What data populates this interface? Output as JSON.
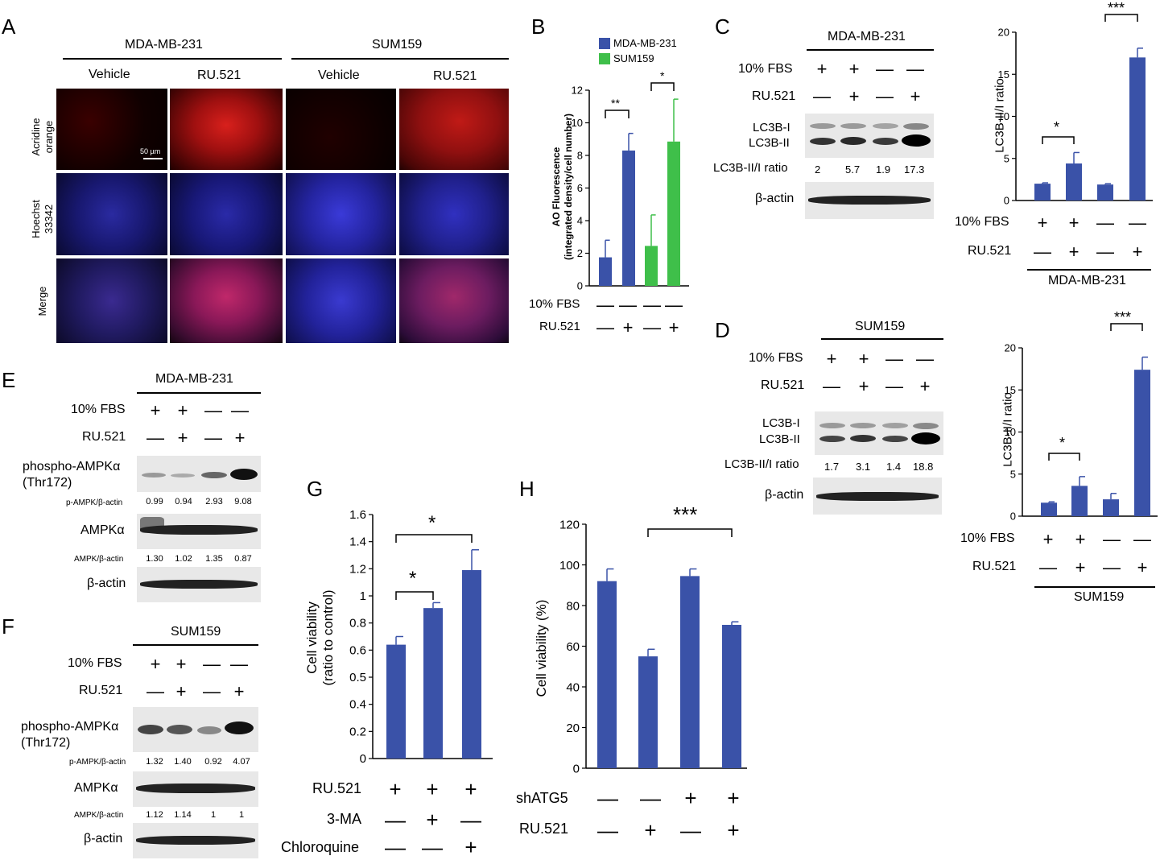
{
  "panelA": {
    "letter": "A",
    "cellLines": [
      "MDA-MB-231",
      "SUM159"
    ],
    "conditions": [
      "Vehicle",
      "RU.521",
      "Vehicle",
      "RU.521"
    ],
    "rows": [
      "Acridine orange",
      "Hoechst 33342",
      "Merge"
    ],
    "rowLines": [
      [
        "Acridine",
        "orange"
      ],
      [
        "Hoechst",
        "33342"
      ],
      [
        "Merge"
      ]
    ],
    "scalebar": "50 µm"
  },
  "panelB": {
    "letter": "B",
    "rowLabels": [
      "10% FBS",
      "RU.521"
    ],
    "fbs": [
      "—",
      "—",
      "—",
      "—"
    ],
    "ru": [
      "—",
      "+",
      "—",
      "+"
    ],
    "sig": [
      "**",
      "*"
    ]
  },
  "panelC": {
    "letter": "C",
    "title": "MDA-MB-231",
    "rowLabels": [
      "10% FBS",
      "RU.521"
    ],
    "fbs": [
      "+",
      "+",
      "—",
      "—"
    ],
    "ru": [
      "—",
      "+",
      "—",
      "+"
    ],
    "bandLabels": [
      "LC3B-I",
      "LC3B-II"
    ],
    "ratioLabel": "LC3B-II/I ratio",
    "ratios": [
      "2",
      "5.7",
      "1.9",
      "17.3"
    ],
    "actinLabel": "β-actin",
    "chartFbs": [
      "+",
      "+",
      "—",
      "—"
    ],
    "chartRu": [
      "—",
      "+",
      "—",
      "+"
    ],
    "chartRowLabels": [
      "10% FBS",
      "RU.521"
    ],
    "chartCaption": "MDA-MB-231",
    "sig": [
      "*",
      "***"
    ]
  },
  "panelD": {
    "letter": "D",
    "title": "SUM159",
    "rowLabels": [
      "10% FBS",
      "RU.521"
    ],
    "fbs": [
      "+",
      "+",
      "—",
      "—"
    ],
    "ru": [
      "—",
      "+",
      "—",
      "+"
    ],
    "bandLabels": [
      "LC3B-I",
      "LC3B-II"
    ],
    "ratioLabel": "LC3B-II/I ratio",
    "ratios": [
      "1.7",
      "3.1",
      "1.4",
      "18.8"
    ],
    "actinLabel": "β-actin",
    "chartFbs": [
      "+",
      "+",
      "—",
      "—"
    ],
    "chartRu": [
      "—",
      "+",
      "—",
      "+"
    ],
    "chartRowLabels": [
      "10% FBS",
      "RU.521"
    ],
    "chartCaption": "SUM159",
    "sig": [
      "*",
      "***"
    ]
  },
  "panelE": {
    "letter": "E",
    "title": "MDA-MB-231",
    "rowLabels": [
      "10% FBS",
      "RU.521"
    ],
    "fbs": [
      "+",
      "+",
      "—",
      "—"
    ],
    "ru": [
      "—",
      "+",
      "—",
      "+"
    ],
    "pLabel1": "phospho-AMPKα",
    "pLabel2": "(Thr172)",
    "pRatioLabel": "p-AMPK/β-actin",
    "pRatios": [
      "0.99",
      "0.94",
      "2.93",
      "9.08"
    ],
    "ampkLabel": "AMPKα",
    "ampkRatioLabel": "AMPK/β-actin",
    "ampkRatios": [
      "1.30",
      "1.02",
      "1.35",
      "0.87"
    ],
    "actinLabel": "β-actin"
  },
  "panelF": {
    "letter": "F",
    "title": "SUM159",
    "rowLabels": [
      "10% FBS",
      "RU.521"
    ],
    "fbs": [
      "+",
      "+",
      "—",
      "—"
    ],
    "ru": [
      "—",
      "+",
      "—",
      "+"
    ],
    "pLabel1": "phospho-AMPKα",
    "pLabel2": "(Thr172)",
    "pRatioLabel": "p-AMPK/β-actin",
    "pRatios": [
      "1.32",
      "1.40",
      "0.92",
      "4.07"
    ],
    "ampkLabel": "AMPKα",
    "ampkRatioLabel": "AMPK/β-actin",
    "ampkRatios": [
      "1.12",
      "1.14",
      "1",
      "1"
    ],
    "actinLabel": "β-actin"
  },
  "panelG": {
    "letter": "G",
    "rowLabels": [
      "RU.521",
      "3-MA",
      "Chloroquine"
    ],
    "ru": [
      "+",
      "+",
      "+"
    ],
    "ma": [
      "—",
      "+",
      "—"
    ],
    "cq": [
      "—",
      "—",
      "+"
    ],
    "sig": [
      "*",
      "*"
    ]
  },
  "panelH": {
    "letter": "H",
    "rowLabels": [
      "shATG5",
      "RU.521"
    ],
    "sh": [
      "—",
      "—",
      "+",
      "+"
    ],
    "ru": [
      "—",
      "+",
      "—",
      "+"
    ],
    "sig": [
      "***"
    ]
  },
  "chart_data": [
    {
      "panel": "B",
      "type": "bar",
      "ylabel": "AO Fluorescence (integrated density/cell number)",
      "ylabel_lines": [
        "AO Fluorescence",
        "(integrated density/cell number)"
      ],
      "ylim": [
        0,
        12
      ],
      "yticks": [
        0,
        2,
        4,
        6,
        8,
        10,
        12
      ],
      "legend": "top",
      "series": [
        {
          "name": "MDA-MB-231",
          "color": "#3a52a8",
          "values": [
            1.75,
            8.3
          ],
          "errors": [
            1.05,
            1.05
          ]
        },
        {
          "name": "SUM159",
          "color": "#3fbf4a",
          "values": [
            2.45,
            8.85
          ],
          "errors": [
            1.9,
            2.6
          ]
        }
      ]
    },
    {
      "panel": "C",
      "type": "bar",
      "ylabel": "LC3B-II/I ratio",
      "ylim": [
        0,
        20
      ],
      "yticks": [
        0,
        5,
        10,
        15,
        20
      ],
      "color": "#3a52a8",
      "values": [
        2,
        4.4,
        1.9,
        17
      ],
      "errors": [
        0.1,
        1.3,
        0.1,
        1.1
      ]
    },
    {
      "panel": "D",
      "type": "bar",
      "ylabel": "LC3B-II/I ratio",
      "ylim": [
        0,
        20
      ],
      "yticks": [
        0,
        5,
        10,
        15,
        20
      ],
      "color": "#3a52a8",
      "values": [
        1.6,
        3.6,
        2.0,
        17.4
      ],
      "errors": [
        0.1,
        1.1,
        0.7,
        1.5
      ]
    },
    {
      "panel": "G",
      "type": "bar",
      "ylabel": "Cell viability (ratio to control)",
      "ylabel_lines": [
        "Cell viability",
        "(ratio to control)"
      ],
      "ylim": [
        0,
        1.6
      ],
      "yticks": [
        0,
        0.2,
        0.4,
        0.5,
        0.6,
        0.8,
        1,
        1.2,
        1.4,
        1.6
      ],
      "color": "#3a52a8",
      "values": [
        0.64,
        0.91,
        1.19
      ],
      "errors": [
        0.06,
        0.04,
        0.15
      ]
    },
    {
      "panel": "H",
      "type": "bar",
      "ylabel": "Cell viability (%)",
      "ylim": [
        0,
        120
      ],
      "yticks": [
        0,
        20,
        40,
        60,
        80,
        100,
        120
      ],
      "color": "#3a52a8",
      "values": [
        92,
        55,
        94.5,
        70.5
      ],
      "errors": [
        6,
        3.5,
        3.5,
        1.5
      ]
    }
  ]
}
